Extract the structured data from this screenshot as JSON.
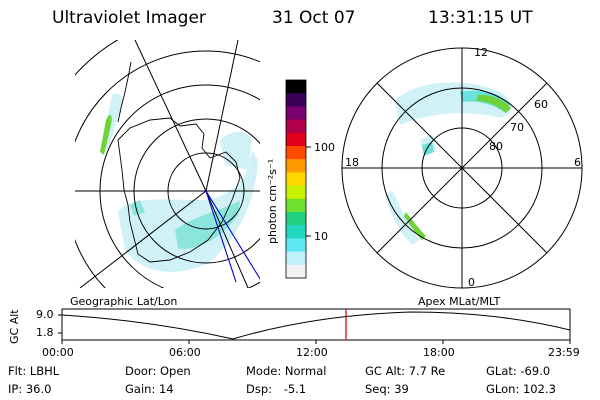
{
  "header": {
    "instrument": "Ultraviolet Imager",
    "date": "31 Oct 07",
    "time": "13:31:15 UT"
  },
  "colorbar": {
    "unit_label": "photon cm⁻²s⁻¹",
    "ticks": [
      {
        "label": "100",
        "value": 100
      },
      {
        "label": "10",
        "value": 10
      }
    ],
    "colors": [
      "#000000",
      "#3a0058",
      "#7a0070",
      "#b0004a",
      "#e0001a",
      "#ff4a00",
      "#ff9a00",
      "#ffd800",
      "#c8f000",
      "#70e030",
      "#20d080",
      "#20d8c0",
      "#60e8f0",
      "#c0f0f8",
      "#f2f2f2"
    ]
  },
  "polar_plot": {
    "mlt_labels": {
      "top": "12",
      "left": "18",
      "right": "6",
      "bottom": "0"
    },
    "lat_labels": [
      {
        "label": "60",
        "lat": 60
      },
      {
        "label": "70",
        "lat": 70
      },
      {
        "label": "80",
        "lat": 80
      }
    ]
  },
  "timeline": {
    "left_label": "Geographic Lat/Lon",
    "right_label": "Apex MLat/MLT",
    "yaxis_label": "GC Alt",
    "y_ticks": [
      "9.0",
      "1.8"
    ],
    "x_ticks": [
      "00:00",
      "06:00",
      "12:00",
      "18:00",
      "23:59"
    ],
    "current_time_marker": "13:31:15",
    "marker_color": "#cc0000"
  },
  "status": {
    "row1": [
      {
        "key": "Flt:",
        "value": "LBHL"
      },
      {
        "key": "Door:",
        "value": "Open"
      },
      {
        "key": "Mode:",
        "value": "Normal"
      },
      {
        "key": "GC Alt:",
        "value": "7.7 Re"
      },
      {
        "key": "GLat:",
        "value": "-69.0"
      }
    ],
    "row2": [
      {
        "key": "IP:",
        "value": "36.0"
      },
      {
        "key": "Gain:",
        "value": "14"
      },
      {
        "key": "Dsp:",
        "value": "-5.1"
      },
      {
        "key": "Seq:",
        "value": "39"
      },
      {
        "key": "GLon:",
        "value": "102.3"
      }
    ]
  }
}
